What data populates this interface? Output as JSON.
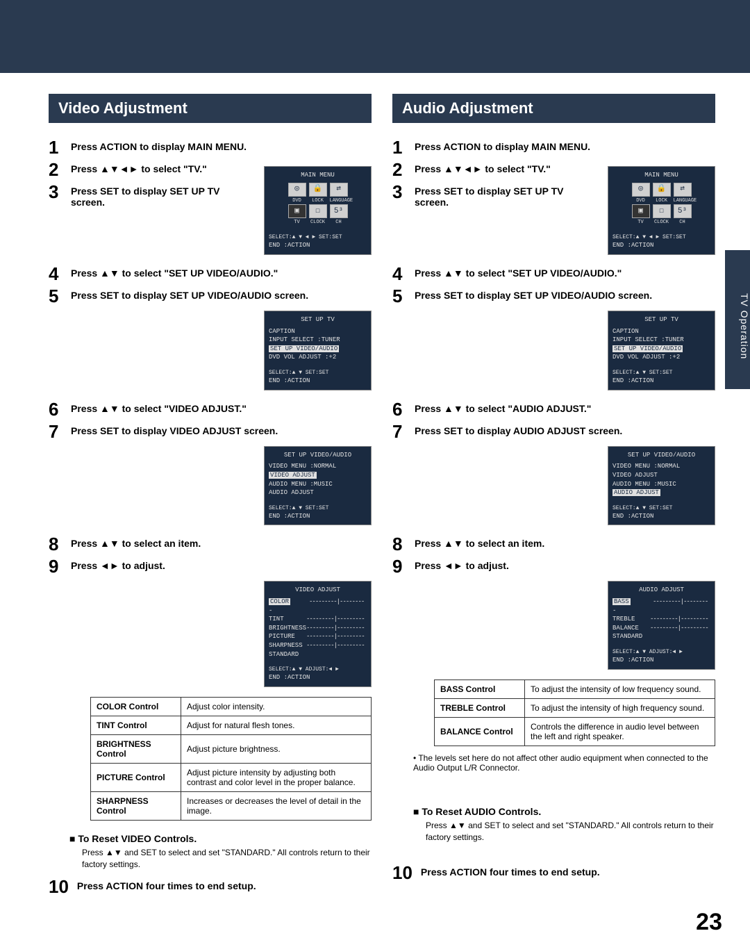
{
  "page_number": "23",
  "side_tab": "TV Operation",
  "colors": {
    "band": "#2a3a50",
    "osd_bg": "#1a2a40",
    "osd_fg": "#e0e0e0"
  },
  "video": {
    "title": "Video Adjustment",
    "s1": "Press ACTION to display MAIN MENU.",
    "s2": "Press ▲▼◄► to select \"TV.\"",
    "s3": "Press SET to display SET UP TV screen.",
    "s4": "Press ▲▼ to select \"SET UP VIDEO/AUDIO.\"",
    "s5": "Press SET to display SET UP VIDEO/AUDIO screen.",
    "s6": "Press ▲▼ to select \"VIDEO ADJUST.\"",
    "s7": "Press SET to display VIDEO ADJUST screen.",
    "s8": "Press ▲▼ to select an item.",
    "s9": "Press ◄► to adjust.",
    "reset_head": "■ To Reset VIDEO Controls.",
    "reset_body": "Press ▲▼ and SET to select and set \"STANDARD.\" All controls return to their factory settings.",
    "s10": "Press ACTION four times to end setup.",
    "table": {
      "r1a": "COLOR Control",
      "r1b": "Adjust color intensity.",
      "r2a": "TINT Control",
      "r2b": "Adjust for natural flesh tones.",
      "r3a": "BRIGHTNESS Control",
      "r3b": "Adjust picture brightness.",
      "r4a": "PICTURE Control",
      "r4b": "Adjust picture intensity by adjusting both contrast and color level in the proper balance.",
      "r5a": "SHARPNESS Control",
      "r5b": "Increases or decreases the level of detail in the image."
    }
  },
  "audio": {
    "title": "Audio Adjustment",
    "s1": "Press ACTION to display MAIN MENU.",
    "s2": "Press ▲▼◄► to select \"TV.\"",
    "s3": "Press SET to display SET UP TV screen.",
    "s4": "Press ▲▼ to select \"SET UP VIDEO/AUDIO.\"",
    "s5": "Press SET to display SET UP VIDEO/AUDIO screen.",
    "s6": "Press ▲▼ to select \"AUDIO ADJUST.\"",
    "s7": "Press SET to display AUDIO ADJUST screen.",
    "s8": "Press ▲▼ to select an item.",
    "s9": "Press ◄► to adjust.",
    "note": "• The levels set here do not affect other audio equipment when connected to the Audio Output L/R Connector.",
    "reset_head": "■ To Reset AUDIO Controls.",
    "reset_body": "Press ▲▼ and SET to select and set \"STANDARD.\" All controls return to their factory settings.",
    "s10": "Press ACTION four times to end setup.",
    "table": {
      "r1a": "BASS Control",
      "r1b": "To adjust the intensity of low frequency sound.",
      "r2a": "TREBLE Control",
      "r2b": "To adjust the intensity of high frequency sound.",
      "r3a": "BALANCE Control",
      "r3b": "Controls the difference in audio level between the left and right speaker."
    }
  },
  "osd": {
    "main_menu_title": "MAIN MENU",
    "main_icons_top": {
      "a": "◎",
      "b": "🔒",
      "c": "⇄"
    },
    "main_labels_top": {
      "a": "DVD",
      "b": "LOCK",
      "c": "LANGUAGE"
    },
    "main_icons_bot": {
      "a": "▣",
      "b": "☐",
      "c": "5³"
    },
    "main_labels_bot": {
      "a": "TV",
      "b": "CLOCK",
      "c": "CH"
    },
    "main_foot1": "SELECT:▲ ▼ ◄ ►   SET:SET",
    "main_foot2": "END    :ACTION",
    "setup_tv_title": "SET UP TV",
    "setup_tv_l1": "CAPTION",
    "setup_tv_l2": "INPUT SELECT   :TUNER",
    "setup_tv_l3": "SET UP VIDEO/AUDIO",
    "setup_tv_l4": "DVD VOL ADJUST :+2",
    "setup_tv_foot1": "SELECT:▲ ▼       SET:SET",
    "setup_tv_foot2": "END   :ACTION",
    "setup_va_title": "SET UP VIDEO/AUDIO",
    "va_l1": "VIDEO MENU     :NORMAL",
    "va_l2": "VIDEO ADJUST",
    "va_l3": "AUDIO MENU     :MUSIC",
    "va_l4": "AUDIO ADJUST",
    "video_adj_title": "VIDEO ADJUST",
    "vadj_l1": "COLOR",
    "vadj_l2": "TINT",
    "vadj_l3": "BRIGHTNESS",
    "vadj_l4": "PICTURE",
    "vadj_l5": "SHARPNESS",
    "vadj_l6": "STANDARD",
    "adj_foot1": "SELECT:▲ ▼    ADJUST:◄ ►",
    "adj_foot2": "END   :ACTION",
    "audio_adj_title": "AUDIO ADJUST",
    "aadj_l1": "BASS",
    "aadj_l2": "TREBLE",
    "aadj_l3": "BALANCE",
    "aadj_l4": "STANDARD"
  }
}
